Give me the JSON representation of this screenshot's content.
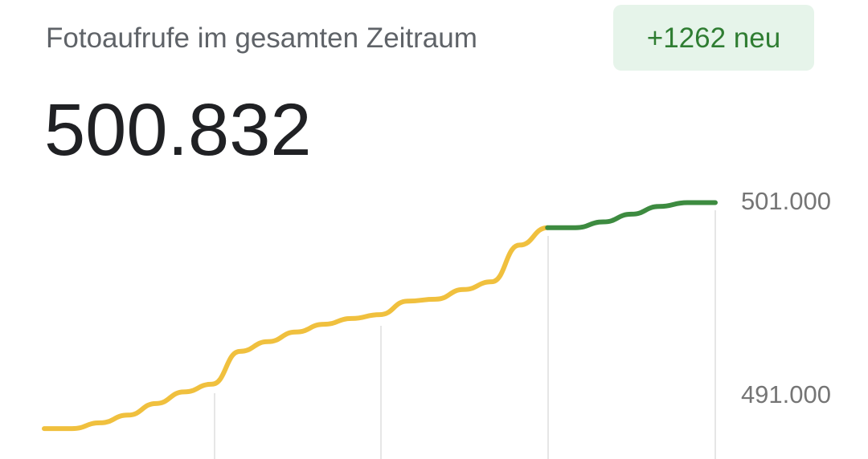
{
  "chart_data": {
    "type": "line",
    "title": "Fotoaufrufe im gesamten Zeitraum",
    "subtitle": "500.832",
    "annotations": [
      "+1262 neu"
    ],
    "series": [
      {
        "name": null,
        "color": "#f0c03e",
        "values": [
          489200,
          489200,
          489500,
          489900,
          490500,
          491100,
          491500,
          493200,
          493700,
          494200,
          494600,
          494900,
          495100,
          495800,
          495900,
          496400,
          496800,
          498700,
          499600,
          null,
          null,
          null,
          null,
          null,
          null
        ]
      },
      {
        "name": null,
        "color": "#3d8b40",
        "values": [
          null,
          null,
          null,
          null,
          null,
          null,
          null,
          null,
          null,
          null,
          null,
          null,
          null,
          null,
          null,
          null,
          null,
          null,
          499600,
          499600,
          499900,
          500300,
          500700,
          500900,
          500900
        ]
      }
    ],
    "ylim": [
      488000,
      502000
    ],
    "yticks": [
      {
        "value": 501000,
        "label": "501.000"
      },
      {
        "value": 491000,
        "label": "491.000"
      }
    ]
  }
}
